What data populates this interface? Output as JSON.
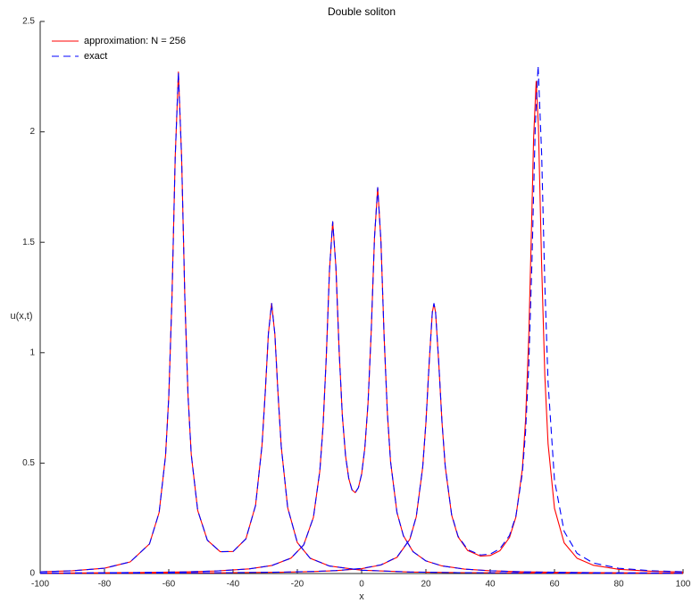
{
  "chart_data": {
    "type": "line",
    "title": "Double soliton",
    "x_label": "x",
    "y_label": "u(x,t)",
    "xlim": [
      -100,
      100
    ],
    "xticks": [
      -100,
      -80,
      -60,
      -40,
      -20,
      0,
      20,
      40,
      60,
      80,
      100
    ],
    "ylim": [
      0,
      2.5
    ],
    "yticks": [
      0,
      0.5,
      1,
      1.5,
      2,
      2.5
    ],
    "grid": false,
    "legend": "top-left",
    "series": [
      {
        "name": "approximation: N = 256",
        "color": "#ff0000",
        "linestyle": "solid",
        "curves": [
          {
            "x": [
              -100,
              -90,
              -80,
              -72,
              -66,
              -63,
              -61,
              -60,
              -59,
              -58,
              -57,
              -56,
              -55,
              -54,
              -53,
              -51,
              -48,
              -44,
              -40,
              -36,
              -33,
              -31,
              -30,
              -29,
              -28,
              -27,
              -26,
              -25,
              -23,
              -20,
              -16,
              -10,
              0,
              15,
              30,
              50,
              75,
              100
            ],
            "values": [
              0.0077,
              0.0125,
              0.024,
              0.0525,
              0.134,
              0.276,
              0.533,
              0.799,
              1.248,
              1.882,
              2.271,
              1.884,
              1.251,
              0.804,
              0.539,
              0.286,
              0.151,
              0.099,
              0.0996,
              0.157,
              0.308,
              0.579,
              0.816,
              1.087,
              1.223,
              1.085,
              0.812,
              0.574,
              0.298,
              0.14,
              0.069,
              0.034,
              0.015,
              0.007,
              0.004,
              0.0026,
              0.0015,
              0.001
            ]
          },
          {
            "x": [
              -100,
              -85,
              -70,
              -55,
              -45,
              -35,
              -28,
              -22,
              -18,
              -15,
              -13,
              -12,
              -11,
              -10,
              -9,
              -8,
              -7,
              -6,
              -5,
              -4,
              -3,
              -2,
              -1,
              0,
              1,
              2,
              3,
              4,
              5,
              6,
              7,
              8,
              9,
              11,
              13,
              16,
              20,
              25,
              32,
              40,
              50,
              65,
              80,
              100
            ],
            "values": [
              0.002,
              0.003,
              0.0045,
              0.0074,
              0.0116,
              0.021,
              0.036,
              0.0695,
              0.13,
              0.254,
              0.465,
              0.667,
              0.98,
              1.373,
              1.593,
              1.388,
              1.01,
              0.715,
              0.533,
              0.43,
              0.379,
              0.366,
              0.389,
              0.45,
              0.569,
              0.773,
              1.101,
              1.52,
              1.748,
              1.507,
              1.074,
              0.73,
              0.507,
              0.276,
              0.171,
              0.099,
              0.057,
              0.0345,
              0.02,
              0.0126,
              0.008,
              0.0046,
              0.0031,
              0.002
            ]
          },
          {
            "x": [
              -100,
              -80,
              -60,
              -40,
              -25,
              -15,
              -8,
              0,
              6,
              11,
              15,
              17,
              19,
              20,
              21,
              22,
              22.5,
              23,
              24,
              25,
              26,
              28,
              30,
              33,
              37,
              40,
              43,
              46,
              48,
              50,
              51,
              52,
              53,
              53.5,
              54.3,
              55,
              56,
              57,
              58,
              60,
              63,
              67,
              72,
              80,
              90,
              100
            ],
            "values": [
              0.001,
              0.0015,
              0.0022,
              0.0036,
              0.0059,
              0.0089,
              0.0129,
              0.022,
              0.0385,
              0.0733,
              0.155,
              0.257,
              0.481,
              0.682,
              0.95,
              1.183,
              1.221,
              1.184,
              0.952,
              0.686,
              0.485,
              0.265,
              0.166,
              0.104,
              0.079,
              0.0815,
              0.103,
              0.163,
              0.256,
              0.473,
              0.695,
              1.072,
              1.656,
              1.971,
              2.229,
              2.025,
              1.399,
              0.894,
              0.588,
              0.295,
              0.139,
              0.0695,
              0.0377,
              0.019,
              0.0105,
              0.0067
            ]
          }
        ]
      },
      {
        "name": "exact",
        "color": "#0000ff",
        "linestyle": "dashed",
        "curves": [
          {
            "x": [
              -100,
              -90,
              -80,
              -72,
              -66,
              -63,
              -61,
              -60,
              -59,
              -58,
              -57,
              -56,
              -55,
              -54,
              -53,
              -51,
              -48,
              -44,
              -40,
              -36,
              -33,
              -31,
              -30,
              -29,
              -28,
              -27,
              -26,
              -25,
              -23,
              -20,
              -16,
              -10,
              0,
              15,
              30,
              50,
              75,
              100
            ],
            "values": [
              0.0077,
              0.0125,
              0.024,
              0.0525,
              0.134,
              0.276,
              0.533,
              0.799,
              1.248,
              1.882,
              2.271,
              1.884,
              1.251,
              0.804,
              0.539,
              0.286,
              0.151,
              0.099,
              0.0996,
              0.157,
              0.308,
              0.579,
              0.816,
              1.087,
              1.223,
              1.085,
              0.812,
              0.574,
              0.298,
              0.14,
              0.069,
              0.034,
              0.015,
              0.007,
              0.004,
              0.0026,
              0.0015,
              0.001
            ]
          },
          {
            "x": [
              -100,
              -85,
              -70,
              -55,
              -45,
              -35,
              -28,
              -22,
              -18,
              -15,
              -13,
              -12,
              -11,
              -10,
              -9,
              -8,
              -7,
              -6,
              -5,
              -4,
              -3,
              -2,
              -1,
              0,
              1,
              2,
              3,
              4,
              5,
              6,
              7,
              8,
              9,
              11,
              13,
              16,
              20,
              25,
              32,
              40,
              50,
              65,
              80,
              100
            ],
            "values": [
              0.002,
              0.003,
              0.0045,
              0.0074,
              0.0116,
              0.021,
              0.036,
              0.0695,
              0.13,
              0.254,
              0.465,
              0.667,
              0.98,
              1.373,
              1.593,
              1.388,
              1.01,
              0.715,
              0.533,
              0.43,
              0.379,
              0.366,
              0.389,
              0.45,
              0.569,
              0.773,
              1.101,
              1.52,
              1.748,
              1.507,
              1.074,
              0.73,
              0.507,
              0.276,
              0.171,
              0.099,
              0.057,
              0.0345,
              0.02,
              0.0126,
              0.008,
              0.0046,
              0.0031,
              0.002
            ]
          },
          {
            "x": [
              -100,
              -80,
              -60,
              -40,
              -25,
              -15,
              -8,
              0,
              6,
              11,
              15,
              17,
              19,
              20,
              21,
              22,
              22.5,
              23,
              24,
              25,
              26,
              28,
              30,
              33,
              37,
              40,
              43,
              46,
              48,
              50,
              51,
              52,
              53,
              54,
              54.9,
              56,
              57,
              58,
              60,
              63,
              67,
              72,
              80,
              90,
              100
            ],
            "values": [
              0.0012,
              0.0016,
              0.0024,
              0.0039,
              0.0063,
              0.0094,
              0.0134,
              0.0229,
              0.0394,
              0.0744,
              0.156,
              0.258,
              0.482,
              0.684,
              0.952,
              1.185,
              1.223,
              1.186,
              0.954,
              0.688,
              0.488,
              0.267,
              0.169,
              0.108,
              0.084,
              0.088,
              0.112,
              0.172,
              0.261,
              0.455,
              0.641,
              0.942,
              1.418,
              2.017,
              2.299,
              1.902,
              1.305,
              0.866,
              0.422,
              0.191,
              0.0915,
              0.048,
              0.0236,
              0.0128,
              0.0081
            ]
          }
        ]
      }
    ]
  }
}
